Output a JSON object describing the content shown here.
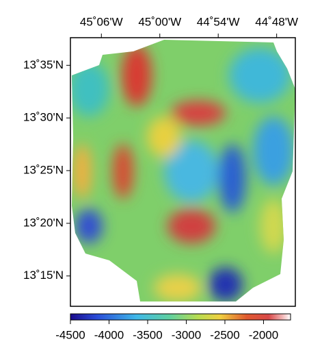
{
  "map": {
    "xlim": [
      -45.153,
      -44.768
    ],
    "ylim": [
      13.202,
      13.627
    ],
    "xticks": [
      {
        "value": -45.1,
        "label": "45˚06'W"
      },
      {
        "value": -45.0,
        "label": "45˚00'W"
      },
      {
        "value": -44.9,
        "label": "44˚54'W"
      },
      {
        "value": -44.8,
        "label": "44˚48'W"
      }
    ],
    "yticks": [
      {
        "value": 13.5833,
        "label": "13˚35'N"
      },
      {
        "value": 13.5,
        "label": "13˚30'N"
      },
      {
        "value": 13.4167,
        "label": "13˚25'N"
      },
      {
        "value": 13.3333,
        "label": "13˚20'N"
      },
      {
        "value": 13.25,
        "label": "13˚15'N"
      }
    ]
  },
  "colorbar": {
    "lim": [
      -4500,
      -1650
    ],
    "ticks": [
      -4500,
      -4000,
      -3500,
      -3000,
      -2500,
      -2000
    ]
  }
}
